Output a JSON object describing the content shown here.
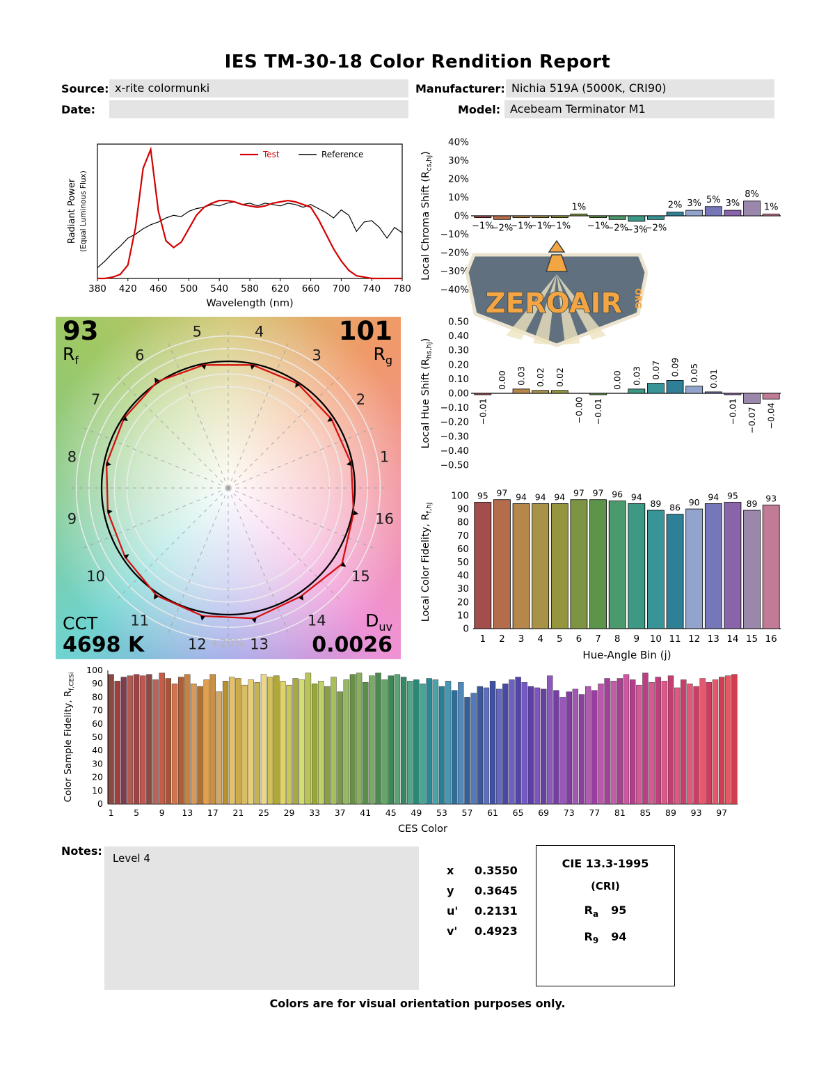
{
  "title": "IES TM-30-18 Color Rendition Report",
  "header": {
    "source_label": "Source:",
    "source_value": "x-rite colormunki",
    "manufacturer_label": "Manufacturer:",
    "manufacturer_value": "Nichia 519A (5000K, CRI90)",
    "date_label": "Date:",
    "date_value": "",
    "model_label": "Model:",
    "model_value": "Acebeam Terminator M1"
  },
  "watermark": {
    "text": "ZEROAIR",
    "suffix": "ORG"
  },
  "cvg": {
    "rf_value": "93",
    "rf_symbol": "R",
    "rf_sub": "f",
    "rg_value": "101",
    "rg_symbol": "R",
    "rg_sub": "g",
    "cct_label": "CCT",
    "cct_value": "4698 K",
    "duv_symbol": "D",
    "duv_sub": "uv",
    "duv_value": "0.0026",
    "ring_label": "+20%"
  },
  "notes": {
    "label": "Notes:",
    "content": "Level 4",
    "chromaticity": [
      {
        "label": "x",
        "value": "0.3550"
      },
      {
        "label": "y",
        "value": "0.3645"
      },
      {
        "label": "u'",
        "value": "0.2131"
      },
      {
        "label": "v'",
        "value": "0.4923"
      }
    ],
    "cie": {
      "title": "CIE 13.3-1995",
      "subtitle": "(CRI)",
      "ra_symbol": "R",
      "ra_sub": "a",
      "ra_value": "95",
      "r9_symbol": "R",
      "r9_sub": "9",
      "r9_value": "94"
    }
  },
  "footer": "Colors are for visual orientation purposes only.",
  "hue_bin_colors": [
    "#a34d4d",
    "#b56c4b",
    "#b5874a",
    "#a89248",
    "#94953d",
    "#7d9542",
    "#5c9549",
    "#4a9a6d",
    "#3d9884",
    "#379597",
    "#2f7f96",
    "#92a4cc",
    "#7577b9",
    "#8a64ab",
    "#9b87ab",
    "#c27b97"
  ],
  "chart_data": [
    {
      "id": "spd",
      "type": "line",
      "xlabel": "Wavelength (nm)",
      "ylabel": "Radiant Power",
      "ylabel2": "(Equal Luminous Flux)",
      "xlim": [
        380,
        780
      ],
      "ylim": [
        0,
        1
      ],
      "xticks": [
        380,
        420,
        460,
        500,
        540,
        580,
        620,
        660,
        700,
        740,
        780
      ],
      "series": [
        {
          "name": "Test",
          "color": "#d40000",
          "x": [
            380,
            390,
            400,
            410,
            420,
            430,
            440,
            450,
            460,
            470,
            480,
            490,
            500,
            510,
            520,
            530,
            540,
            550,
            560,
            570,
            580,
            590,
            600,
            610,
            620,
            630,
            640,
            650,
            660,
            670,
            680,
            690,
            700,
            710,
            720,
            730,
            740,
            750,
            760,
            770,
            780
          ],
          "y": [
            0,
            0,
            0.01,
            0.03,
            0.1,
            0.38,
            0.82,
            0.96,
            0.5,
            0.28,
            0.23,
            0.27,
            0.37,
            0.47,
            0.53,
            0.56,
            0.58,
            0.58,
            0.57,
            0.55,
            0.54,
            0.53,
            0.54,
            0.56,
            0.57,
            0.58,
            0.57,
            0.55,
            0.53,
            0.44,
            0.33,
            0.22,
            0.13,
            0.06,
            0.02,
            0.01,
            0,
            0,
            0,
            0,
            0
          ]
        },
        {
          "name": "Reference",
          "color": "#000000",
          "x": [
            380,
            390,
            400,
            410,
            420,
            430,
            440,
            450,
            460,
            470,
            480,
            490,
            500,
            510,
            520,
            530,
            540,
            550,
            560,
            570,
            580,
            590,
            600,
            610,
            620,
            630,
            640,
            650,
            660,
            670,
            680,
            690,
            700,
            710,
            720,
            730,
            740,
            750,
            760,
            770,
            780
          ],
          "y": [
            0.08,
            0.13,
            0.19,
            0.24,
            0.3,
            0.33,
            0.37,
            0.4,
            0.42,
            0.45,
            0.47,
            0.46,
            0.5,
            0.52,
            0.53,
            0.55,
            0.54,
            0.56,
            0.57,
            0.55,
            0.56,
            0.54,
            0.56,
            0.55,
            0.54,
            0.56,
            0.55,
            0.53,
            0.55,
            0.52,
            0.49,
            0.45,
            0.51,
            0.47,
            0.35,
            0.42,
            0.43,
            0.38,
            0.3,
            0.38,
            0.34
          ]
        }
      ],
      "legend_position": "top-right"
    },
    {
      "id": "chroma_shift",
      "type": "bar",
      "ylabel": "Local Chroma Shift (R",
      "ylabel_sub": "cs,hj",
      "ylabel_end": ")",
      "ylim": [
        -40,
        40
      ],
      "ytick_values": [
        40,
        30,
        20,
        10,
        0,
        -10,
        -20,
        -30,
        -40
      ],
      "ytick_labels": [
        "40%",
        "30%",
        "20%",
        "10%",
        "0%",
        "−10%",
        "−20%",
        "−30%",
        "−40%"
      ],
      "categories": [
        "1",
        "2",
        "3",
        "4",
        "5",
        "6",
        "7",
        "8",
        "9",
        "10",
        "11",
        "12",
        "13",
        "14",
        "15",
        "16"
      ],
      "values": [
        -1,
        -2,
        -1,
        -1,
        -1,
        1,
        -1,
        -2,
        -3,
        -2,
        2,
        3,
        5,
        3,
        8,
        1
      ],
      "labels": [
        "−1%",
        "−2%",
        "−1%",
        "−1%",
        "−1%",
        "1%",
        "−1%",
        "−2%",
        "−3%",
        "−2%",
        "2%",
        "3%",
        "5%",
        "3%",
        "8%",
        "1%"
      ],
      "label_rotated": false
    },
    {
      "id": "hue_shift",
      "type": "bar",
      "ylabel": "Local Hue Shift (R",
      "ylabel_sub": "hs,hj",
      "ylabel_end": ")",
      "ylim": [
        -0.5,
        0.5
      ],
      "ytick_values": [
        0.5,
        0.4,
        0.3,
        0.2,
        0.1,
        0,
        -0.1,
        -0.2,
        -0.3,
        -0.4,
        -0.5
      ],
      "ytick_labels": [
        "0.50",
        "0.40",
        "0.30",
        "0.20",
        "0.10",
        "0.00",
        "−0.10",
        "−0.20",
        "−0.30",
        "−0.40",
        "−0.50"
      ],
      "categories": [
        "1",
        "2",
        "3",
        "4",
        "5",
        "6",
        "7",
        "8",
        "9",
        "10",
        "11",
        "12",
        "13",
        "14",
        "15",
        "16"
      ],
      "values": [
        -0.01,
        0,
        0.03,
        0.02,
        0.02,
        0,
        -0.01,
        0,
        0.03,
        0.07,
        0.09,
        0.05,
        0.01,
        -0.01,
        -0.07,
        -0.04
      ],
      "labels": [
        "−0.01",
        "0.00",
        "0.03",
        "0.02",
        "0.02",
        "−0.00",
        "−0.01",
        "0.00",
        "0.03",
        "0.07",
        "0.09",
        "0.05",
        "0.01",
        "−0.01",
        "−0.07",
        "−0.04"
      ],
      "label_rotated": true
    },
    {
      "id": "local_fidelity",
      "type": "bar",
      "ylabel": "Local Color Fidelity, R",
      "ylabel_sub": "f,hj",
      "xlabel": "Hue-Angle Bin (j)",
      "ylim": [
        0,
        100
      ],
      "ytick_values": [
        0,
        10,
        20,
        30,
        40,
        50,
        60,
        70,
        80,
        90,
        100
      ],
      "ytick_labels": [
        "0",
        "10",
        "20",
        "30",
        "40",
        "50",
        "60",
        "70",
        "80",
        "90",
        "100"
      ],
      "categories": [
        "1",
        "2",
        "3",
        "4",
        "5",
        "6",
        "7",
        "8",
        "9",
        "10",
        "11",
        "12",
        "13",
        "14",
        "15",
        "16"
      ],
      "values": [
        95,
        97,
        94,
        94,
        94,
        97,
        97,
        96,
        94,
        89,
        86,
        90,
        94,
        95,
        89,
        93
      ]
    },
    {
      "id": "ces_fidelity",
      "type": "bar",
      "ylabel": "Color Sample Fidelity, R",
      "ylabel_sub": "f,CESi",
      "xlabel": "CES Color",
      "ylim": [
        0,
        100
      ],
      "ytick_values": [
        0,
        10,
        20,
        30,
        40,
        50,
        60,
        70,
        80,
        90,
        100
      ],
      "ytick_labels": [
        "0",
        "10",
        "20",
        "30",
        "40",
        "50",
        "60",
        "70",
        "80",
        "90",
        "100"
      ],
      "xticks": [
        1,
        5,
        9,
        13,
        17,
        21,
        25,
        29,
        33,
        37,
        41,
        45,
        49,
        53,
        57,
        61,
        65,
        69,
        73,
        77,
        81,
        85,
        89,
        93,
        97
      ],
      "values": [
        97,
        92,
        95,
        96,
        97,
        96,
        97,
        93,
        98,
        94,
        90,
        95,
        97,
        90,
        88,
        93,
        97,
        84,
        92,
        95,
        94,
        89,
        93,
        91,
        97,
        95,
        96,
        92,
        89,
        94,
        93,
        98,
        90,
        92,
        88,
        95,
        84,
        93,
        97,
        98,
        91,
        96,
        98,
        93,
        96,
        97,
        95,
        92,
        93,
        90,
        94,
        93,
        88,
        92,
        85,
        91,
        80,
        83,
        88,
        87,
        92,
        86,
        90,
        93,
        95,
        91,
        88,
        87,
        86,
        96,
        85,
        80,
        84,
        86,
        82,
        88,
        85,
        90,
        94,
        92,
        94,
        97,
        93,
        89,
        98,
        91,
        95,
        92,
        96,
        87,
        93,
        90,
        88,
        94,
        91,
        93,
        95,
        96,
        97
      ],
      "colors": [
        "#8a4a42",
        "#a33e3e",
        "#7e3c50",
        "#b05a52",
        "#9c4444",
        "#c2564e",
        "#8e4a40",
        "#b86458",
        "#c75c44",
        "#a85436",
        "#d2744c",
        "#b05e38",
        "#c8823e",
        "#d89a58",
        "#b07030",
        "#e0a050",
        "#c89048",
        "#d4a860",
        "#b8902e",
        "#e4c068",
        "#ccaa48",
        "#d8bc66",
        "#e8d070",
        "#c4b450",
        "#ecd884",
        "#d0c258",
        "#b0a838",
        "#e0d468",
        "#c8c658",
        "#a8aa40",
        "#d4dc74",
        "#b8c456",
        "#98a838",
        "#c0d068",
        "#88a040",
        "#a8c058",
        "#78984a",
        "#98b868",
        "#689048",
        "#88b060",
        "#589048",
        "#78ac60",
        "#4c8850",
        "#68a468",
        "#3e8858",
        "#5ca478",
        "#348864",
        "#54a488",
        "#2c8874",
        "#4ca494",
        "#288894",
        "#48a4ac",
        "#2a7e96",
        "#4898b4",
        "#2e6e98",
        "#5088b8",
        "#32609c",
        "#5478bc",
        "#3a58a0",
        "#5c70c0",
        "#4050a4",
        "#6468c4",
        "#4848a8",
        "#6c60c8",
        "#5244ac",
        "#7458c4",
        "#5c40a8",
        "#8054c0",
        "#6840a4",
        "#8c58bc",
        "#7440a0",
        "#9858b8",
        "#803ea0",
        "#a458b4",
        "#8c40a0",
        "#b05cb0",
        "#983ea0",
        "#bc58ac",
        "#a4409c",
        "#c45ca8",
        "#ac3e94",
        "#cc58a0",
        "#b43e8c",
        "#d45898",
        "#bc3e84",
        "#d85890",
        "#c03e7c",
        "#dc5888",
        "#c43e74",
        "#e05880",
        "#c83e6c",
        "#e25878",
        "#cc3e64",
        "#e45870",
        "#ce3e5c",
        "#e65868",
        "#d03e54",
        "#e85860",
        "#d23e50"
      ]
    },
    {
      "id": "cvg",
      "type": "cvg",
      "rf": 93,
      "rg": 101,
      "cct": "4698 K",
      "duv": "0.0026",
      "bin_numbers": [
        1,
        2,
        3,
        4,
        5,
        6,
        7,
        8,
        9,
        10,
        11,
        12,
        13,
        14,
        15,
        16
      ],
      "chroma_shift_pct": [
        -1,
        -2,
        -1,
        -1,
        -1,
        1,
        -1,
        -2,
        -3,
        -2,
        2,
        3,
        5,
        3,
        8,
        1
      ]
    }
  ]
}
